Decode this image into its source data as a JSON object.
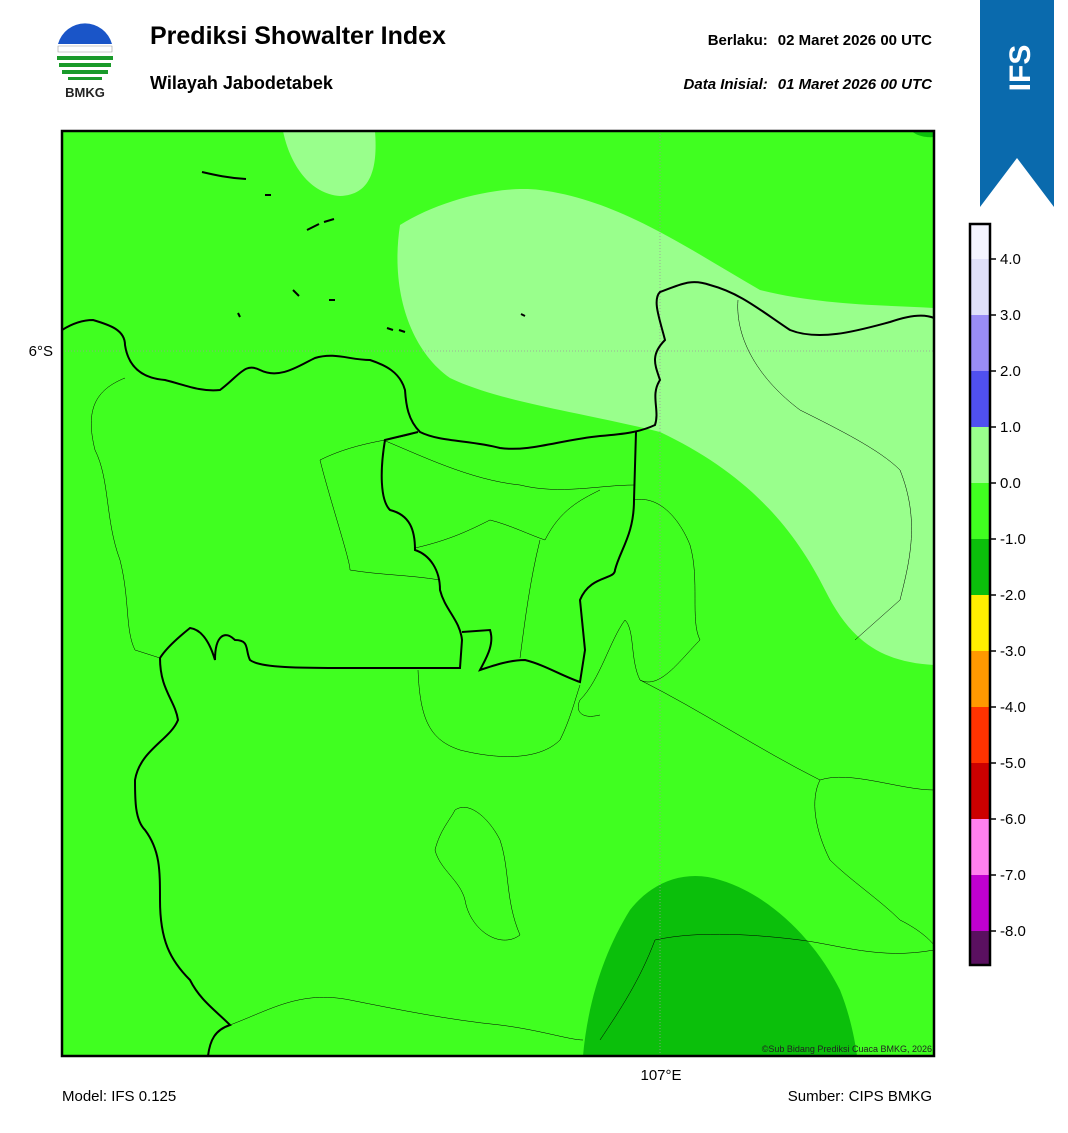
{
  "header": {
    "logo": "BMKG",
    "title": "Prediksi Showalter Index",
    "subtitle": "Wilayah Jabodetabek",
    "valid_label": "Berlaku:",
    "valid_time": "02 Maret 2026 00 UTC",
    "init_label": "Data Inisial:",
    "init_time": "01 Maret 2026 00 UTC",
    "badge": "IFS"
  },
  "map": {
    "lat_label": "6°S",
    "lon_label": "107°E",
    "credit": "©Sub Bidang Prediksi Cuaca BMKG, 2026"
  },
  "colorbar": {
    "ticks": [
      {
        "value": 4,
        "label": "4.0"
      },
      {
        "value": 3,
        "label": "3.0"
      },
      {
        "value": 2,
        "label": "2.0"
      },
      {
        "value": 1,
        "label": "1.0"
      },
      {
        "value": 0,
        "label": "0.0"
      },
      {
        "value": -1,
        "label": "-1.0"
      },
      {
        "value": -2,
        "label": "-2.0"
      },
      {
        "value": -3,
        "label": "-3.0"
      },
      {
        "value": -4,
        "label": "-4.0"
      },
      {
        "value": -5,
        "label": "-5.0"
      },
      {
        "value": -6,
        "label": "-6.0"
      },
      {
        "value": -7,
        "label": "-7.0"
      },
      {
        "value": -8,
        "label": "-8.0"
      }
    ],
    "colors": [
      "#f4f4ff",
      "#e0e0fa",
      "#9a8cf5",
      "#5050f0",
      "#99ff8c",
      "#40ff20",
      "#0bbf0b",
      "#ffee00",
      "#ff9900",
      "#ff3300",
      "#cc0000",
      "#ff80ee",
      "#c000d0",
      "#5a1060"
    ]
  },
  "footer": {
    "model": "Model: IFS 0.125",
    "source": "Sumber: CIPS BMKG"
  }
}
